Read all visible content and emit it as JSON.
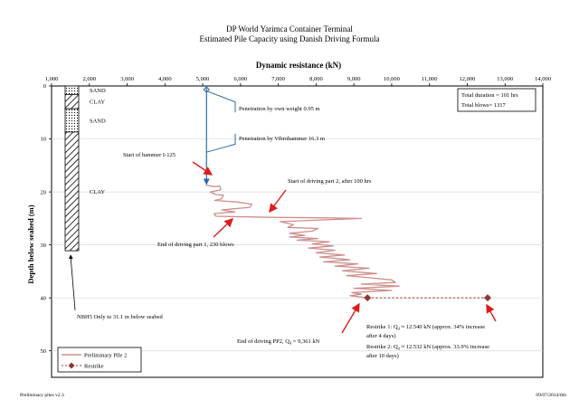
{
  "header": {
    "title_line1": "DP World Yarimca Container Terminal",
    "title_line2": "Estimated Pile Capacity using Danish Driving Formula"
  },
  "footer": {
    "left": "Preliminary piles v2.3",
    "right": "09/07/2014/tbh"
  },
  "colors": {
    "pile2": "#cd8f8d",
    "restrike": "#8b3a2e",
    "penetration": "#2f6aa6",
    "arrow": "#dd1c1c"
  },
  "chart_data": {
    "type": "line",
    "title": "Dynamic resistance (kN)",
    "xlabel": "Dynamic resistance (kN)",
    "ylabel": "Depth below seabed (m)",
    "x_axis_position": "top",
    "y_axis_inverted": true,
    "xlim": [
      1000,
      14000
    ],
    "ylim": [
      0,
      55
    ],
    "xticks": [
      "1,000",
      "2,000",
      "3,000",
      "4,000",
      "5,000",
      "6,000",
      "7,000",
      "8,000",
      "9,000",
      "10,000",
      "11,000",
      "12,000",
      "13,000",
      "14,000"
    ],
    "yticks": [
      "0",
      "10",
      "20",
      "30",
      "40",
      "50"
    ],
    "grid": "horizontal",
    "legend_placement": "bottom-left",
    "series": [
      {
        "name": "Preliminary Pile 2",
        "points": [
          [
            5080,
            18.7
          ],
          [
            5300,
            19
          ],
          [
            5450,
            18.9
          ],
          [
            5480,
            19.6
          ],
          [
            5200,
            20
          ],
          [
            5350,
            20.5
          ],
          [
            5550,
            20.6
          ],
          [
            5500,
            21.3
          ],
          [
            5320,
            21.6
          ],
          [
            5900,
            21.9
          ],
          [
            6300,
            22.3
          ],
          [
            6250,
            22.9
          ],
          [
            5500,
            23.4
          ],
          [
            5850,
            23.8
          ],
          [
            5300,
            24.1
          ],
          [
            5350,
            24.6
          ],
          [
            6800,
            24.8
          ],
          [
            8300,
            24.9
          ],
          [
            9200,
            25
          ],
          [
            8100,
            25.3
          ],
          [
            7050,
            25.6
          ],
          [
            7400,
            26.2
          ],
          [
            7250,
            26.7
          ],
          [
            8050,
            26.9
          ],
          [
            7900,
            27.4
          ],
          [
            7300,
            27.8
          ],
          [
            7700,
            28.2
          ],
          [
            7300,
            28.5
          ],
          [
            8050,
            28.8
          ],
          [
            7500,
            29.1
          ],
          [
            8350,
            29.4
          ],
          [
            7900,
            29.8
          ],
          [
            8450,
            30.2
          ],
          [
            7800,
            30.6
          ],
          [
            8500,
            31
          ],
          [
            8000,
            31.5
          ],
          [
            8750,
            31.9
          ],
          [
            8100,
            32.3
          ],
          [
            8900,
            32.8
          ],
          [
            8200,
            33.2
          ],
          [
            9100,
            33.6
          ],
          [
            8500,
            34
          ],
          [
            9400,
            34.4
          ],
          [
            8700,
            34.9
          ],
          [
            9600,
            35.4
          ],
          [
            8800,
            35.8
          ],
          [
            9400,
            36.2
          ],
          [
            10000,
            36.6
          ],
          [
            10100,
            37.1
          ],
          [
            9200,
            37.4
          ],
          [
            10200,
            37.8
          ],
          [
            9000,
            38.2
          ],
          [
            10000,
            38.6
          ],
          [
            8950,
            39
          ],
          [
            9200,
            39.3
          ],
          [
            8900,
            39.6
          ],
          [
            9361,
            40
          ]
        ]
      },
      {
        "name": "Restrike",
        "points": [
          [
            9361,
            40
          ],
          [
            12540,
            40
          ]
        ]
      },
      {
        "name": "Penetration",
        "points": [
          [
            5100,
            0
          ],
          [
            5100,
            18.5
          ]
        ]
      }
    ],
    "soil_layers": [
      {
        "label": "SAND",
        "type": "sand",
        "from": 0,
        "to": 1.6
      },
      {
        "label": "CLAY",
        "type": "clay",
        "from": 1.6,
        "to": 4.3
      },
      {
        "label": "SAND",
        "type": "sand",
        "from": 4.3,
        "to": 8.7
      },
      {
        "label": "CLAY",
        "type": "clay",
        "from": 8.7,
        "to": 31.1
      }
    ],
    "annotations": {
      "box_duration": "Total duration = 101 hrs",
      "box_blows": "Total blows= 1317",
      "pen_weight": "Penetration by own weight 0.95 m",
      "pen_vibro": "Penetration by Vibrohammer 16.3 m",
      "start_hammer": "Start of hammer  I-125",
      "start_part2": "Start of driving part 2, after 100 hrs",
      "end_part1": "End of driving part 1, 230 blows",
      "nbh5": "NBH5 Only to 31.1 m below seabed",
      "end_pp2": "End of driving PP2, Q",
      "end_pp2_sub": "d",
      "end_pp2_val": " = 9,361 kN",
      "rs1_a": "Restrike 1: Q",
      "rs1_sub": "d",
      "rs1_b": " ≈ 12.540 kN (approx. 34% increase",
      "rs1_c": "after 4 days)",
      "rs2_a": "Restrike 2: Q",
      "rs2_sub": "d",
      "rs2_b": " ≈ 12.532 kN (approx. 33.9% increase",
      "rs2_c": "after 10 days)"
    }
  }
}
